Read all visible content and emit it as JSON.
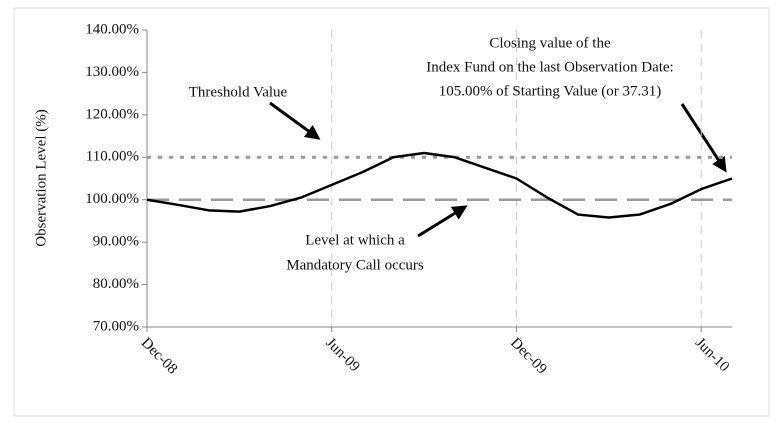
{
  "chart_data": {
    "type": "line",
    "y_label": "Observation Level (%)",
    "x": [
      0,
      1,
      2,
      3,
      4,
      5,
      6,
      7,
      8,
      9,
      10,
      11,
      12,
      13,
      14,
      15,
      16,
      17,
      18,
      19
    ],
    "series": [
      {
        "color": "#000000",
        "values": [
          100,
          98.8,
          97.5,
          97.2,
          98.5,
          100.5,
          103.5,
          106.5,
          110,
          111,
          110,
          107.5,
          105,
          100.5,
          96.5,
          95.8,
          96.5,
          99,
          102.5,
          105
        ]
      }
    ],
    "xlim": [
      0,
      19
    ],
    "xticks": [
      {
        "value": 0,
        "label": "Dec-08"
      },
      {
        "value": 6,
        "label": "Jun-09"
      },
      {
        "value": 12,
        "label": "Dec-09"
      },
      {
        "value": 18,
        "label": "Jun-10"
      }
    ],
    "ylim": [
      70,
      140
    ],
    "yticks": [
      {
        "value": 70,
        "label": "70.00%"
      },
      {
        "value": 80,
        "label": "80.00%"
      },
      {
        "value": 90,
        "label": "90.00%"
      },
      {
        "value": 100,
        "label": "100.00%"
      },
      {
        "value": 110,
        "label": "110.00%"
      },
      {
        "value": 120,
        "label": "120.00%"
      },
      {
        "value": 130,
        "label": "130.00%"
      },
      {
        "value": 140,
        "label": "140.00%"
      }
    ],
    "reference_lines": [
      {
        "value": 110,
        "style": "dotted",
        "color": "#999999"
      },
      {
        "value": 100,
        "style": "dashed",
        "color": "#999999"
      }
    ],
    "vertical_grid": true,
    "annotations": [
      {
        "lines": [
          "Threshold Value"
        ]
      },
      {
        "lines": [
          "Level at which a",
          "Mandatory Call occurs"
        ]
      },
      {
        "lines": [
          "Closing value of the",
          "Index Fund on the last Observation Date:",
          "105.00% of Starting Value (or 37.31)"
        ]
      }
    ]
  }
}
